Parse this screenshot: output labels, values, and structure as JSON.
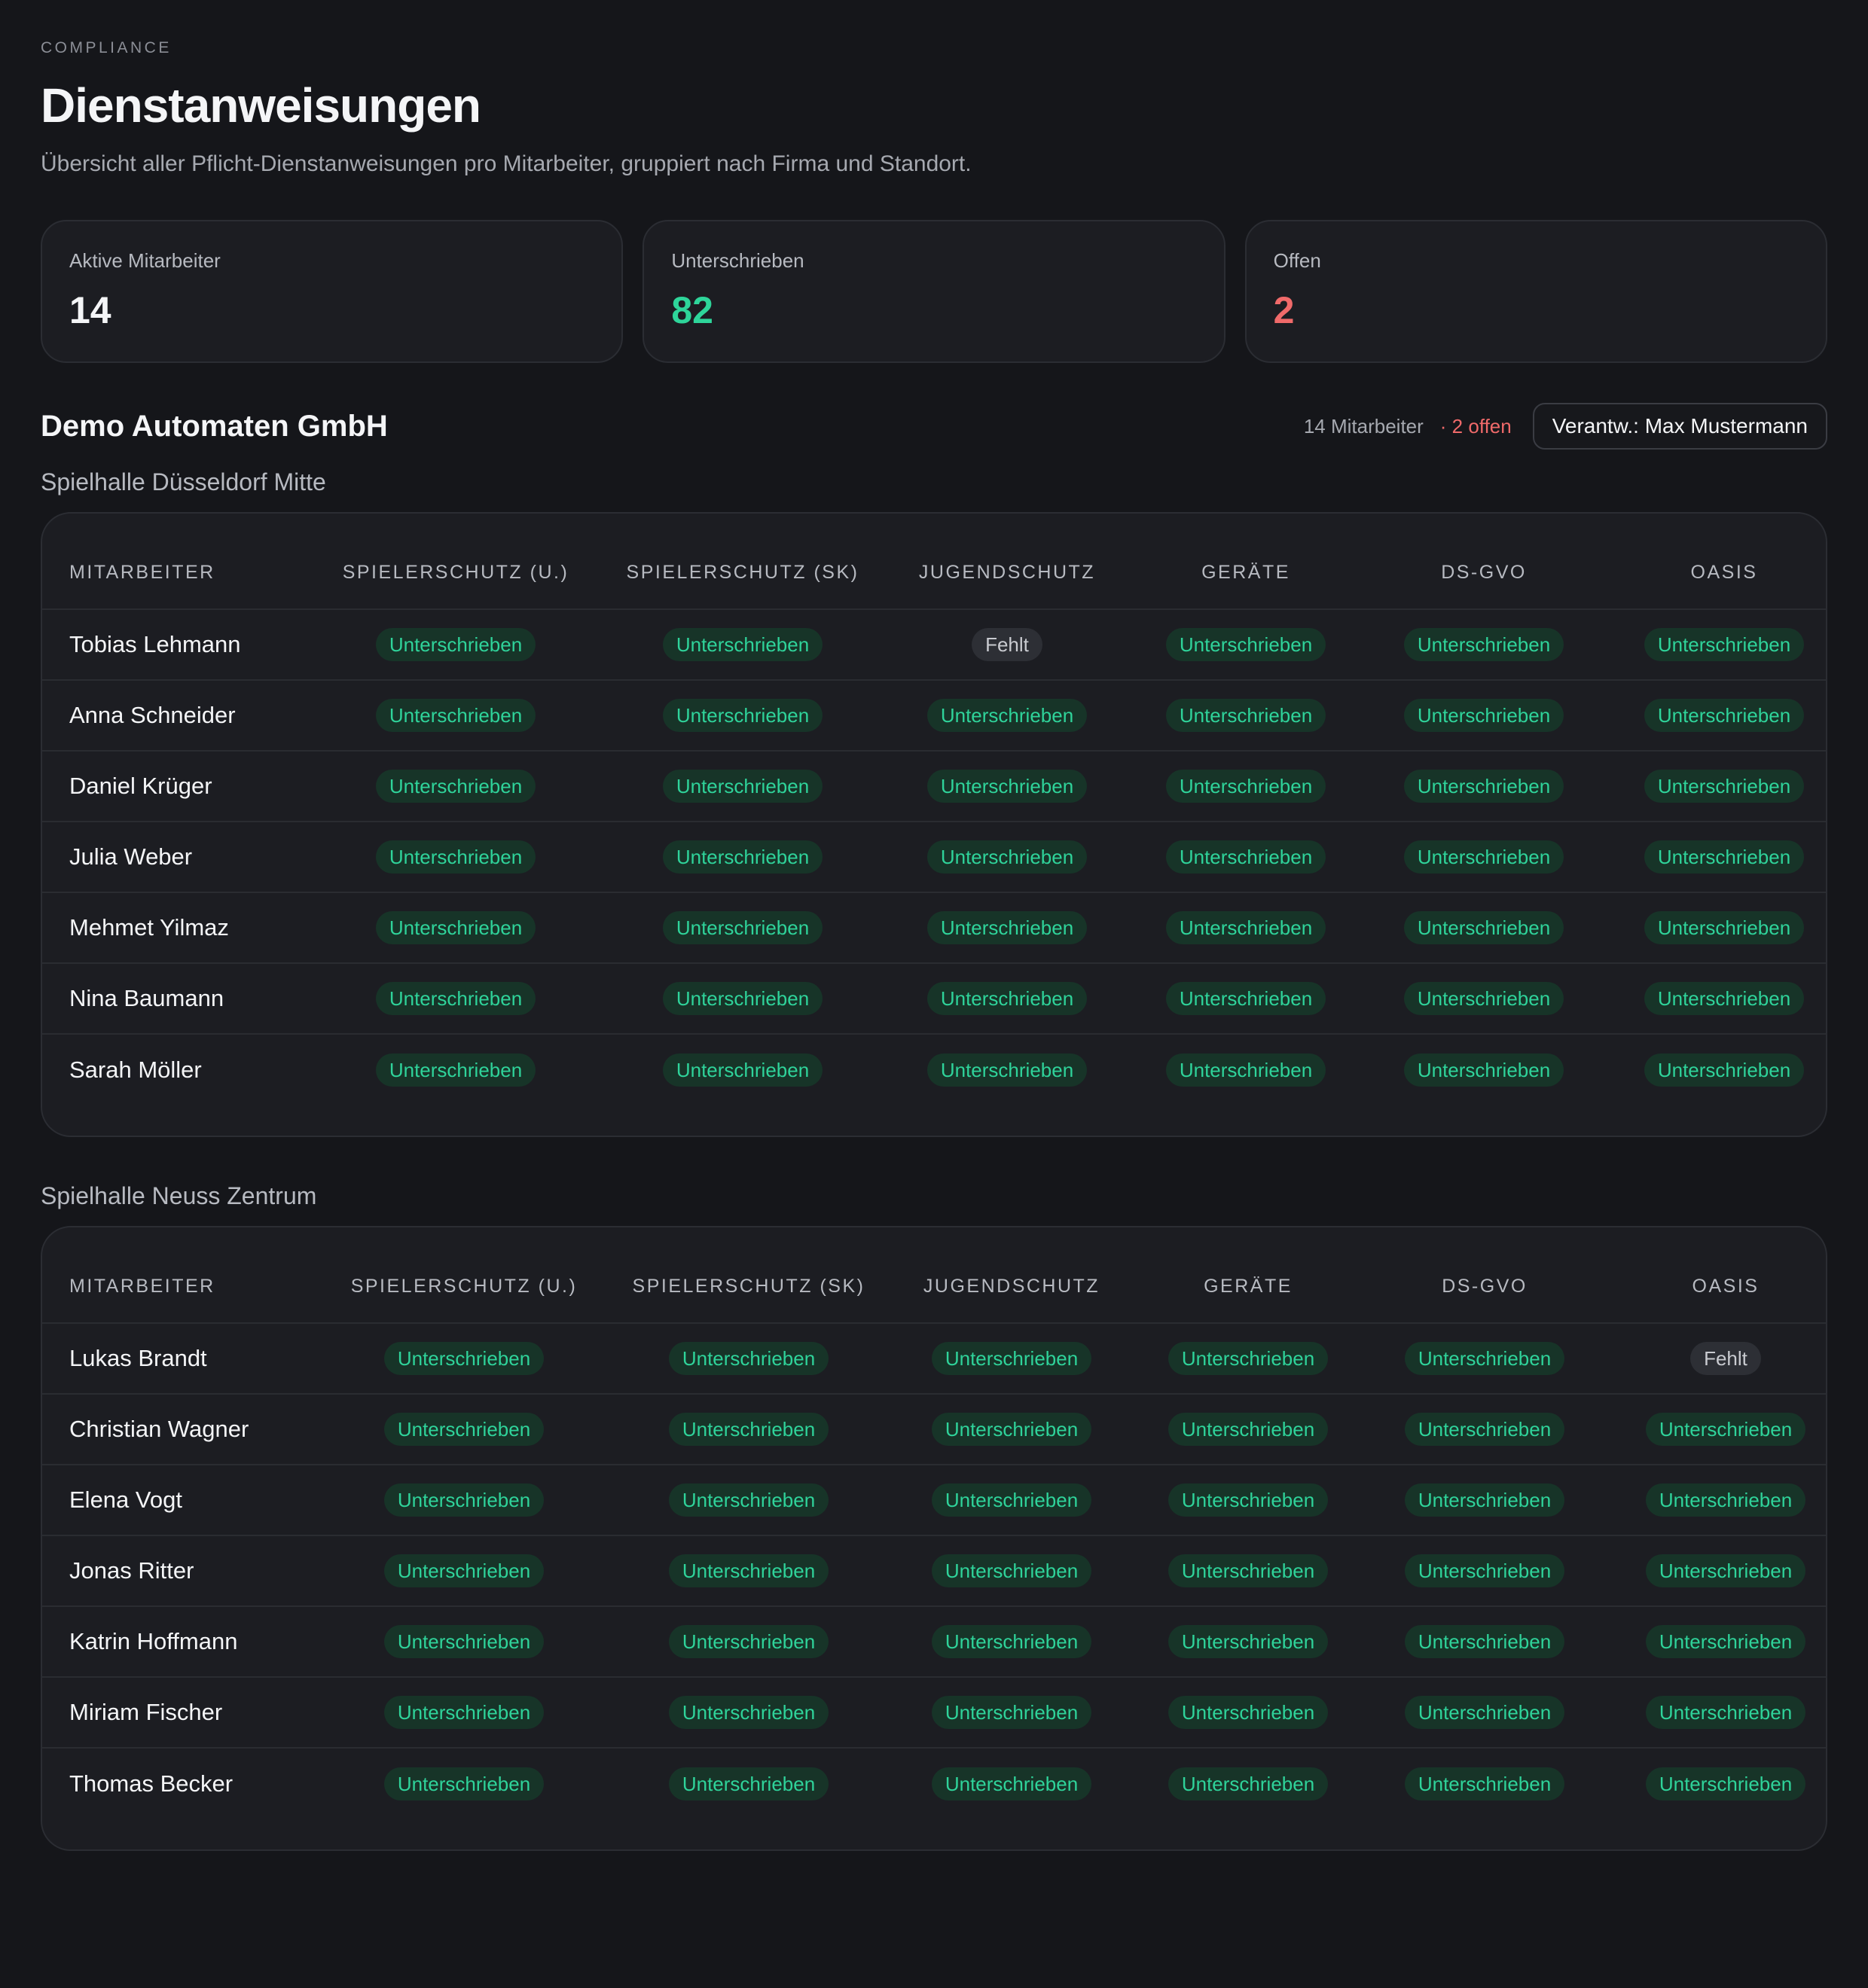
{
  "header": {
    "eyebrow": "COMPLIANCE",
    "title": "Dienstanweisungen",
    "subtitle": "Übersicht aller Pflicht-Dienstanweisungen pro Mitarbeiter, gruppiert nach Firma und Standort."
  },
  "stats": [
    {
      "label": "Aktive Mitarbeiter",
      "value": "14",
      "color": "#f4f5f7"
    },
    {
      "label": "Unterschrieben",
      "value": "82",
      "color": "#2ed59a"
    },
    {
      "label": "Offen",
      "value": "2",
      "color": "#f06a6a"
    }
  ],
  "company": {
    "name": "Demo Automaten GmbH",
    "employee_count": "14 Mitarbeiter",
    "open_count": "· 2 offen",
    "responsible": "Verantw.: Max Mustermann"
  },
  "columns": [
    "MITARBEITER",
    "SPIELERSCHUTZ (U.)",
    "SPIELERSCHUTZ (SK)",
    "JUGENDSCHUTZ",
    "GERÄTE",
    "DS-GVO",
    "OASIS"
  ],
  "status_labels": {
    "ok": "Unterschrieben",
    "missing": "Fehlt"
  },
  "colors": {
    "accent_green": "#2ed59a",
    "accent_red": "#f06a6a",
    "background": "#15161a",
    "card": "#1c1d22"
  },
  "locations": [
    {
      "name": "Spielhalle Düsseldorf Mitte",
      "rows": [
        {
          "name": "Tobias Lehmann",
          "cells": [
            "Unterschrieben",
            "Unterschrieben",
            "Fehlt",
            "Unterschrieben",
            "Unterschrieben",
            "Unterschrieben"
          ]
        },
        {
          "name": "Anna Schneider",
          "cells": [
            "Unterschrieben",
            "Unterschrieben",
            "Unterschrieben",
            "Unterschrieben",
            "Unterschrieben",
            "Unterschrieben"
          ]
        },
        {
          "name": "Daniel Krüger",
          "cells": [
            "Unterschrieben",
            "Unterschrieben",
            "Unterschrieben",
            "Unterschrieben",
            "Unterschrieben",
            "Unterschrieben"
          ]
        },
        {
          "name": "Julia Weber",
          "cells": [
            "Unterschrieben",
            "Unterschrieben",
            "Unterschrieben",
            "Unterschrieben",
            "Unterschrieben",
            "Unterschrieben"
          ]
        },
        {
          "name": "Mehmet Yilmaz",
          "cells": [
            "Unterschrieben",
            "Unterschrieben",
            "Unterschrieben",
            "Unterschrieben",
            "Unterschrieben",
            "Unterschrieben"
          ]
        },
        {
          "name": "Nina Baumann",
          "cells": [
            "Unterschrieben",
            "Unterschrieben",
            "Unterschrieben",
            "Unterschrieben",
            "Unterschrieben",
            "Unterschrieben"
          ]
        },
        {
          "name": "Sarah Möller",
          "cells": [
            "Unterschrieben",
            "Unterschrieben",
            "Unterschrieben",
            "Unterschrieben",
            "Unterschrieben",
            "Unterschrieben"
          ]
        }
      ]
    },
    {
      "name": "Spielhalle Neuss Zentrum",
      "rows": [
        {
          "name": "Lukas Brandt",
          "cells": [
            "Unterschrieben",
            "Unterschrieben",
            "Unterschrieben",
            "Unterschrieben",
            "Unterschrieben",
            "Fehlt"
          ]
        },
        {
          "name": "Christian Wagner",
          "cells": [
            "Unterschrieben",
            "Unterschrieben",
            "Unterschrieben",
            "Unterschrieben",
            "Unterschrieben",
            "Unterschrieben"
          ]
        },
        {
          "name": "Elena Vogt",
          "cells": [
            "Unterschrieben",
            "Unterschrieben",
            "Unterschrieben",
            "Unterschrieben",
            "Unterschrieben",
            "Unterschrieben"
          ]
        },
        {
          "name": "Jonas Ritter",
          "cells": [
            "Unterschrieben",
            "Unterschrieben",
            "Unterschrieben",
            "Unterschrieben",
            "Unterschrieben",
            "Unterschrieben"
          ]
        },
        {
          "name": "Katrin Hoffmann",
          "cells": [
            "Unterschrieben",
            "Unterschrieben",
            "Unterschrieben",
            "Unterschrieben",
            "Unterschrieben",
            "Unterschrieben"
          ]
        },
        {
          "name": "Miriam Fischer",
          "cells": [
            "Unterschrieben",
            "Unterschrieben",
            "Unterschrieben",
            "Unterschrieben",
            "Unterschrieben",
            "Unterschrieben"
          ]
        },
        {
          "name": "Thomas Becker",
          "cells": [
            "Unterschrieben",
            "Unterschrieben",
            "Unterschrieben",
            "Unterschrieben",
            "Unterschrieben",
            "Unterschrieben"
          ]
        }
      ]
    }
  ]
}
